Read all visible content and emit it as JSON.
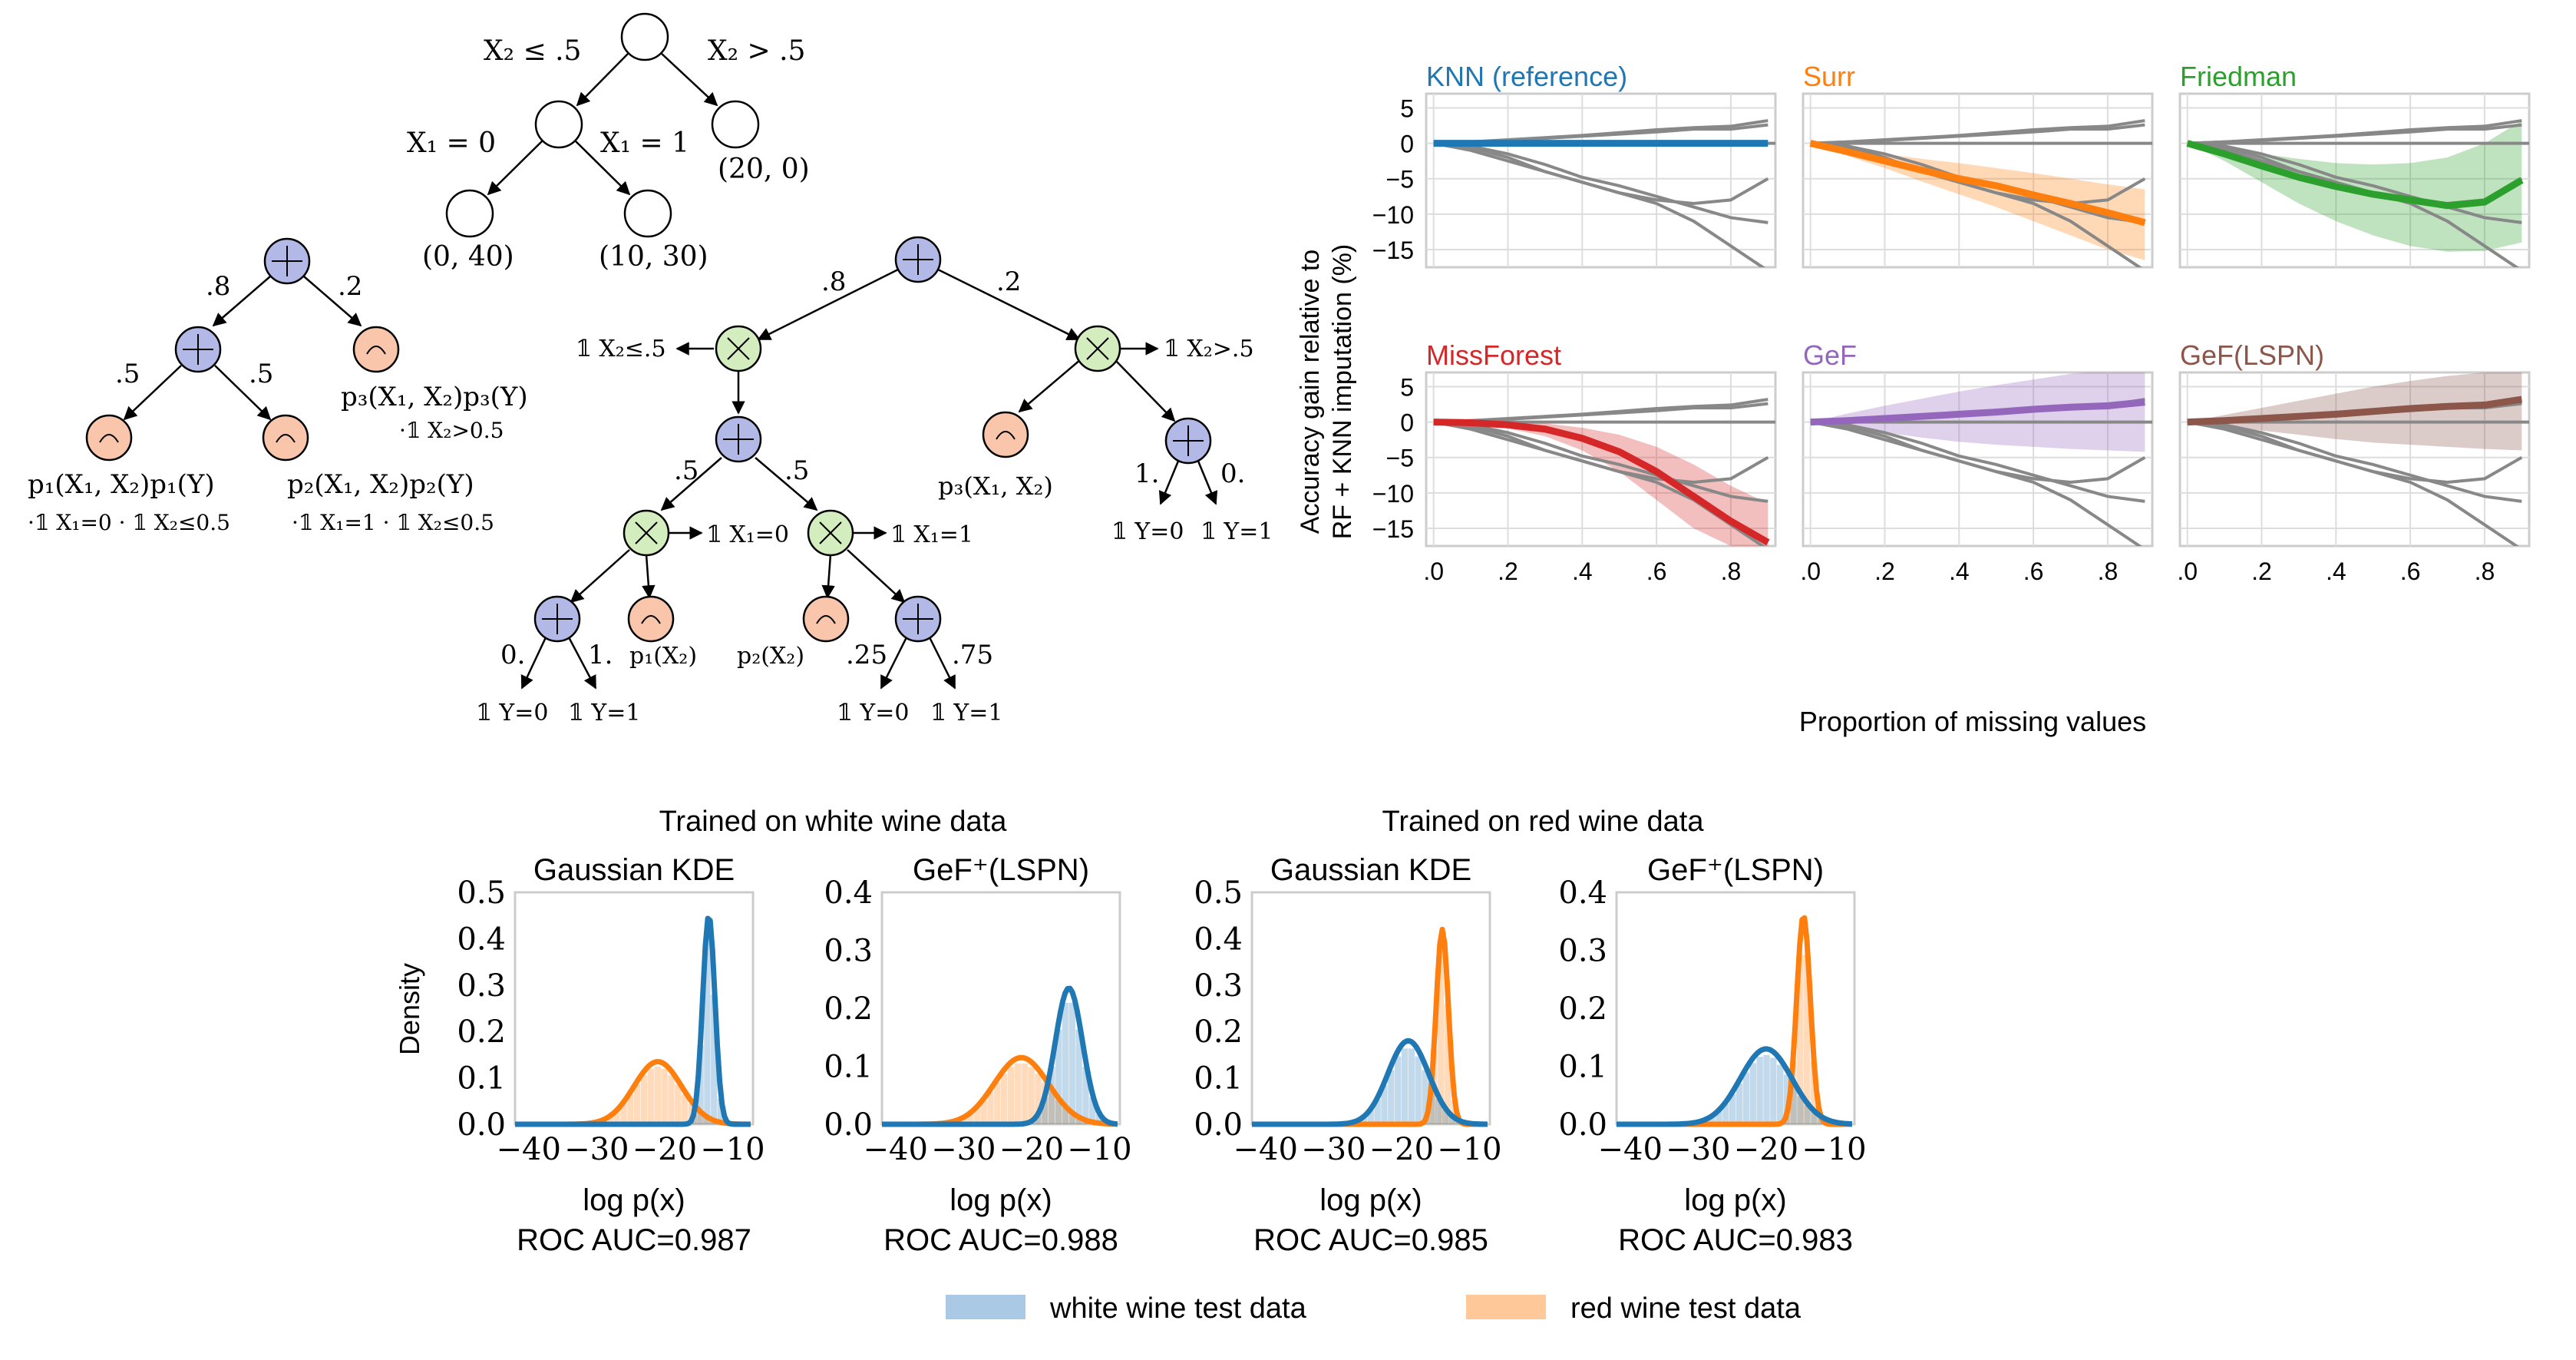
{
  "tree_top": {
    "edge_left": "X₂ ≤ .5",
    "edge_right": "X₂ > .5",
    "edge_x0": "X₁ = 0",
    "edge_x1": "X₁ = 1",
    "leaf_a": "(0, 40)",
    "leaf_b": "(10, 30)",
    "leaf_c": "(20, 0)"
  },
  "spn_left": {
    "w1": ".8",
    "w2": ".2",
    "w3": ".5",
    "w4": ".5",
    "p3": "p₃(X₁, X₂)p₃(Y)",
    "p3_ind": "·𝟙 X₂>0.5",
    "p1": "p₁(X₁, X₂)p₁(Y)",
    "p1_ind": "·𝟙 X₁=0 · 𝟙 X₂≤0.5",
    "p2": "p₂(X₁, X₂)p₂(Y)",
    "p2_ind": "·𝟙 X₁=1 · 𝟙 X₂≤0.5"
  },
  "spn_right": {
    "w_top_l": ".8",
    "w_top_r": ".2",
    "ind_l": "𝟙 X₂≤.5",
    "ind_r": "𝟙 X₂>.5",
    "w_mid_l": ".5",
    "w_mid_r": ".5",
    "ind_x0": "𝟙 X₁=0",
    "ind_x1": "𝟙 X₁=1",
    "p3": "p₃(X₁, X₂)",
    "w_r1": "1.",
    "w_r2": "0.",
    "y0_r": "𝟙 Y=0",
    "y1_r": "𝟙 Y=1",
    "w_ll1": "0.",
    "w_ll2": "1.",
    "y0_l": "𝟙 Y=0",
    "y1_l": "𝟙 Y=1",
    "p1": "p₁(X₂)",
    "p2": "p₂(X₂)",
    "w_lr1": ".25",
    "w_lr2": ".75",
    "y0_m": "𝟙 Y=0",
    "y1_m": "𝟙 Y=1"
  },
  "acc_chart": {
    "ylabel_line1": "Accuracy gain relative to",
    "ylabel_line2": "RF + KNN imputation (%)",
    "xlabel": "Proportion of missing values",
    "yticks": [
      "5",
      "0",
      "−5",
      "−10",
      "−15"
    ],
    "xticks": [
      ".0",
      ".2",
      ".4",
      ".6",
      ".8"
    ]
  },
  "chart_data": [
    {
      "type": "line",
      "title": "",
      "xlabel": "Proportion of missing values",
      "ylabel": "Accuracy gain relative to RF + KNN imputation (%)",
      "xlim": [
        -0.02,
        0.92
      ],
      "ylim": [
        -17.5,
        7
      ],
      "x": [
        0.0,
        0.1,
        0.2,
        0.3,
        0.4,
        0.5,
        0.6,
        0.7,
        0.8,
        0.9
      ],
      "background_series": [
        [
          0,
          0.2,
          0.5,
          0.8,
          1.1,
          1.5,
          1.9,
          2.2,
          2.4,
          3.2
        ],
        [
          0,
          0.2,
          0.4,
          0.7,
          1.0,
          1.3,
          1.6,
          2.0,
          2.0,
          2.6
        ],
        [
          0,
          -0.4,
          -1.5,
          -3.0,
          -4.8,
          -6.0,
          -7.5,
          -9.0,
          -10.5,
          -11.2
        ],
        [
          0,
          -0.6,
          -2.0,
          -4.0,
          -5.5,
          -7.0,
          -8.0,
          -8.5,
          -8.0,
          -5.0
        ],
        [
          0,
          -1.0,
          -2.5,
          -4.0,
          -5.5,
          -7.0,
          -8.5,
          -11.0,
          -14.5,
          -18.0
        ]
      ],
      "panels": [
        {
          "name": "KNN (reference)",
          "color": "#1f77b4",
          "values": [
            0,
            0,
            0,
            0,
            0,
            0,
            0,
            0,
            0,
            0
          ],
          "lower": [
            0,
            0,
            0,
            0,
            0,
            0,
            0,
            0,
            0,
            0
          ],
          "upper": [
            0,
            0,
            0,
            0,
            0,
            0,
            0,
            0,
            0,
            0
          ]
        },
        {
          "name": "Surr",
          "color": "#ff7f0e",
          "values": [
            0,
            -1.2,
            -2.5,
            -3.8,
            -5.0,
            -6.0,
            -7.3,
            -8.5,
            -9.8,
            -11.2
          ],
          "lower": [
            0,
            -1.8,
            -3.5,
            -5.4,
            -7.2,
            -9.0,
            -11.0,
            -13.0,
            -15.0,
            -16.5
          ],
          "upper": [
            0,
            -0.6,
            -1.5,
            -2.2,
            -2.8,
            -3.5,
            -4.2,
            -5.0,
            -5.8,
            -6.5
          ]
        },
        {
          "name": "Friedman",
          "color": "#2ca02c",
          "values": [
            0,
            -1.5,
            -3.2,
            -4.8,
            -6.1,
            -7.2,
            -8.0,
            -8.8,
            -8.3,
            -5.2
          ],
          "lower": [
            0,
            -2.5,
            -5.5,
            -8.5,
            -11.0,
            -13.0,
            -14.5,
            -15.3,
            -15.2,
            -14.0
          ],
          "upper": [
            0,
            -0.8,
            -1.5,
            -2.2,
            -2.8,
            -3.0,
            -2.8,
            -2.0,
            0.0,
            3.2
          ]
        },
        {
          "name": "MissForest",
          "color": "#d62728",
          "values": [
            0,
            -0.1,
            -0.4,
            -1.0,
            -2.3,
            -4.2,
            -7.0,
            -10.5,
            -14.0,
            -17.0
          ],
          "lower": [
            0,
            -0.3,
            -0.9,
            -2.0,
            -4.0,
            -7.0,
            -11.0,
            -15.0,
            -17.5,
            -17.5
          ],
          "upper": [
            0,
            0.1,
            0.0,
            -0.2,
            -0.8,
            -1.8,
            -3.5,
            -6.0,
            -9.0,
            -11.5
          ]
        },
        {
          "name": "GeF",
          "color": "#9467bd",
          "values": [
            0,
            0.2,
            0.5,
            0.8,
            1.1,
            1.4,
            1.8,
            2.1,
            2.3,
            2.8
          ],
          "lower": [
            0,
            -0.8,
            -1.5,
            -2.2,
            -2.8,
            -3.2,
            -3.5,
            -3.8,
            -4.0,
            -4.2
          ],
          "upper": [
            0,
            1.2,
            2.3,
            3.3,
            4.3,
            5.2,
            6.0,
            6.8,
            7.3,
            7.8
          ]
        },
        {
          "name": "GeF(LSPN)",
          "color": "#8c564b",
          "values": [
            0,
            0.2,
            0.5,
            0.8,
            1.1,
            1.5,
            1.9,
            2.2,
            2.4,
            3.2
          ],
          "lower": [
            0,
            -0.6,
            -1.2,
            -1.8,
            -2.4,
            -2.9,
            -3.2,
            -3.5,
            -3.8,
            -4.0
          ],
          "upper": [
            0,
            1.0,
            2.0,
            3.0,
            4.0,
            5.0,
            5.8,
            6.5,
            7.0,
            7.8
          ]
        }
      ]
    },
    {
      "type": "area",
      "title": "",
      "ylabel": "Density",
      "group_titles": [
        "Trained on white wine data",
        "Trained on red wine data"
      ],
      "legend": [
        {
          "name": "white wine test data",
          "color": "#1f77b4"
        },
        {
          "name": "red wine test data",
          "color": "#ff7f0e"
        }
      ],
      "xlim": [
        -42,
        -7
      ],
      "xticks": [
        "−40",
        "−30",
        "−20",
        "−10"
      ],
      "xlabel": "log p(x)",
      "panels": [
        {
          "title": "Gaussian KDE",
          "roc": "ROC AUC=0.987",
          "ylim": [
            0,
            0.5
          ],
          "yticks": [
            "0.5",
            "0.4",
            "0.3",
            "0.2",
            "0.1",
            "0.0"
          ],
          "white": {
            "mu": -13.5,
            "sd": 0.9,
            "peak": 0.45
          },
          "red": {
            "mu": -21.0,
            "sd": 3.5,
            "peak": 0.135
          }
        },
        {
          "title": "GeF⁺(LSPN)",
          "roc": "ROC AUC=0.988",
          "ylim": [
            0,
            0.4
          ],
          "yticks": [
            "0.4",
            "0.3",
            "0.2",
            "0.1",
            "0.0"
          ],
          "white": {
            "mu": -14.5,
            "sd": 2.0,
            "peak": 0.235
          },
          "red": {
            "mu": -21.5,
            "sd": 4.0,
            "peak": 0.115
          }
        },
        {
          "title": "Gaussian KDE",
          "roc": "ROC AUC=0.985",
          "ylim": [
            0,
            0.5
          ],
          "yticks": [
            "0.5",
            "0.4",
            "0.3",
            "0.2",
            "0.1",
            "0.0"
          ],
          "white": {
            "mu": -19.0,
            "sd": 3.0,
            "peak": 0.18
          },
          "red": {
            "mu": -14.0,
            "sd": 0.9,
            "peak": 0.42
          }
        },
        {
          "title": "GeF⁺(LSPN)",
          "roc": "ROC AUC=0.983",
          "ylim": [
            0,
            0.4
          ],
          "yticks": [
            "0.4",
            "0.3",
            "0.2",
            "0.1",
            "0.0"
          ],
          "white": {
            "mu": -20.0,
            "sd": 3.8,
            "peak": 0.13
          },
          "red": {
            "mu": -14.5,
            "sd": 1.0,
            "peak": 0.36
          }
        }
      ]
    }
  ]
}
